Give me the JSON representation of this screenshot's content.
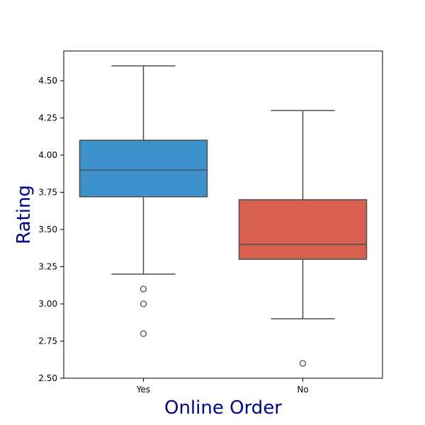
{
  "chart_data": {
    "type": "box",
    "title": "",
    "xlabel": "Online Order",
    "ylabel": "Rating",
    "ylim": [
      2.5,
      4.7
    ],
    "yticks": [
      2.5,
      2.75,
      3.0,
      3.25,
      3.5,
      3.75,
      4.0,
      4.25,
      4.5
    ],
    "ytick_labels": [
      "2.50",
      "2.75",
      "3.00",
      "3.25",
      "3.50",
      "3.75",
      "4.00",
      "4.25",
      "4.50"
    ],
    "categories": [
      "Yes",
      "No"
    ],
    "grid": false,
    "legend": "none",
    "boxes": [
      {
        "category": "Yes",
        "color": "#3e92cc",
        "q1": 3.72,
        "median": 3.9,
        "q3": 4.1,
        "whisker_low": 3.2,
        "whisker_high": 4.6,
        "outliers": [
          3.1,
          3.0,
          2.8
        ]
      },
      {
        "category": "No",
        "color": "#d65f50",
        "q1": 3.3,
        "median": 3.4,
        "q3": 3.7,
        "whisker_low": 2.9,
        "whisker_high": 4.3,
        "outliers": [
          2.6
        ]
      }
    ]
  }
}
